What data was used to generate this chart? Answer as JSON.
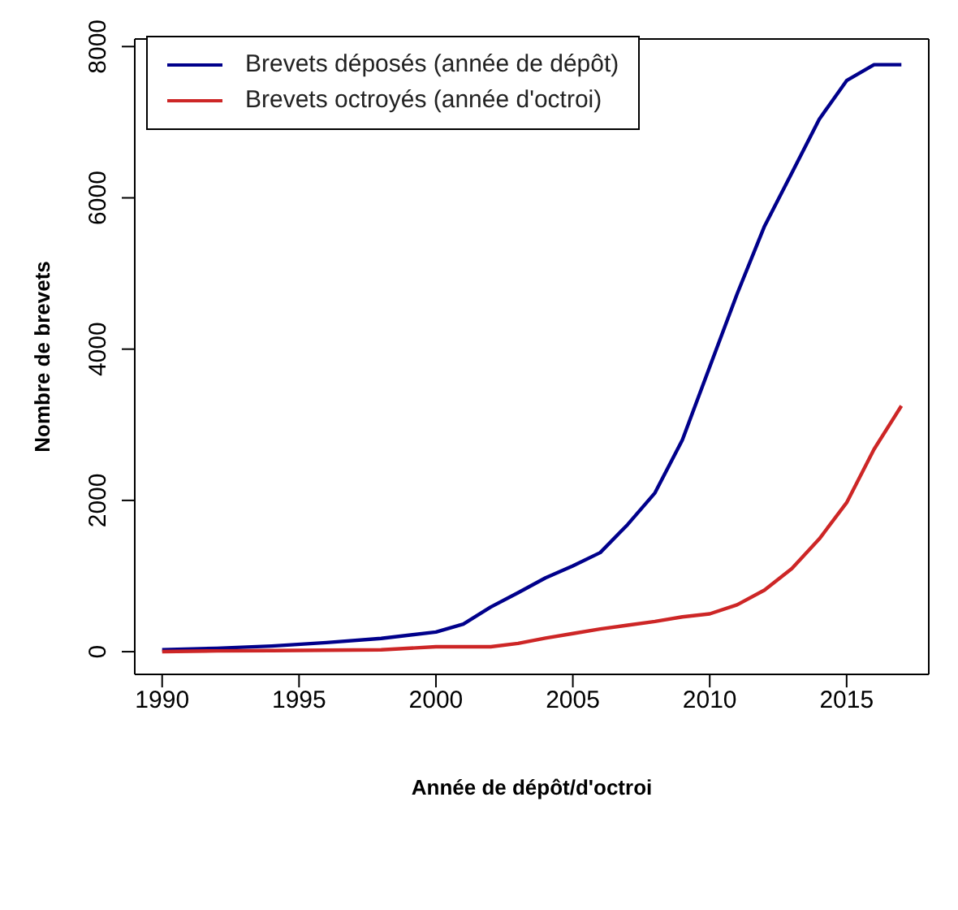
{
  "chart_data": {
    "type": "line",
    "xlabel": "Année de dépôt/d'octroi",
    "ylabel": "Nombre de brevets",
    "x": [
      1990,
      1992,
      1994,
      1996,
      1998,
      2000,
      2001,
      2002,
      2003,
      2004,
      2005,
      2006,
      2007,
      2008,
      2009,
      2010,
      2011,
      2012,
      2013,
      2014,
      2015,
      2016,
      2017
    ],
    "series": [
      {
        "name": "Brevets déposés (année de dépôt)",
        "color": "#00008b",
        "values": [
          25,
          45,
          75,
          120,
          175,
          260,
          365,
          590,
          780,
          975,
          1135,
          1310,
          1680,
          2100,
          2800,
          3765,
          4730,
          5625,
          6330,
          7040,
          7550,
          7760,
          7760
        ]
      },
      {
        "name": "Brevets octroyés (année d'octroi)",
        "color": "#cd2626",
        "values": [
          0,
          10,
          15,
          20,
          25,
          65,
          65,
          65,
          110,
          180,
          240,
          300,
          350,
          400,
          460,
          500,
          620,
          815,
          1100,
          1490,
          1970,
          2675,
          3250
        ]
      }
    ],
    "xlim": [
      1989,
      2018
    ],
    "xticks": [
      1990,
      1995,
      2000,
      2005,
      2010,
      2015
    ],
    "ylim": [
      -300,
      8100
    ],
    "yticks": [
      0,
      2000,
      4000,
      6000,
      8000
    ],
    "grid": false,
    "legend": "top left",
    "marker": "none",
    "line_style": "solid"
  }
}
